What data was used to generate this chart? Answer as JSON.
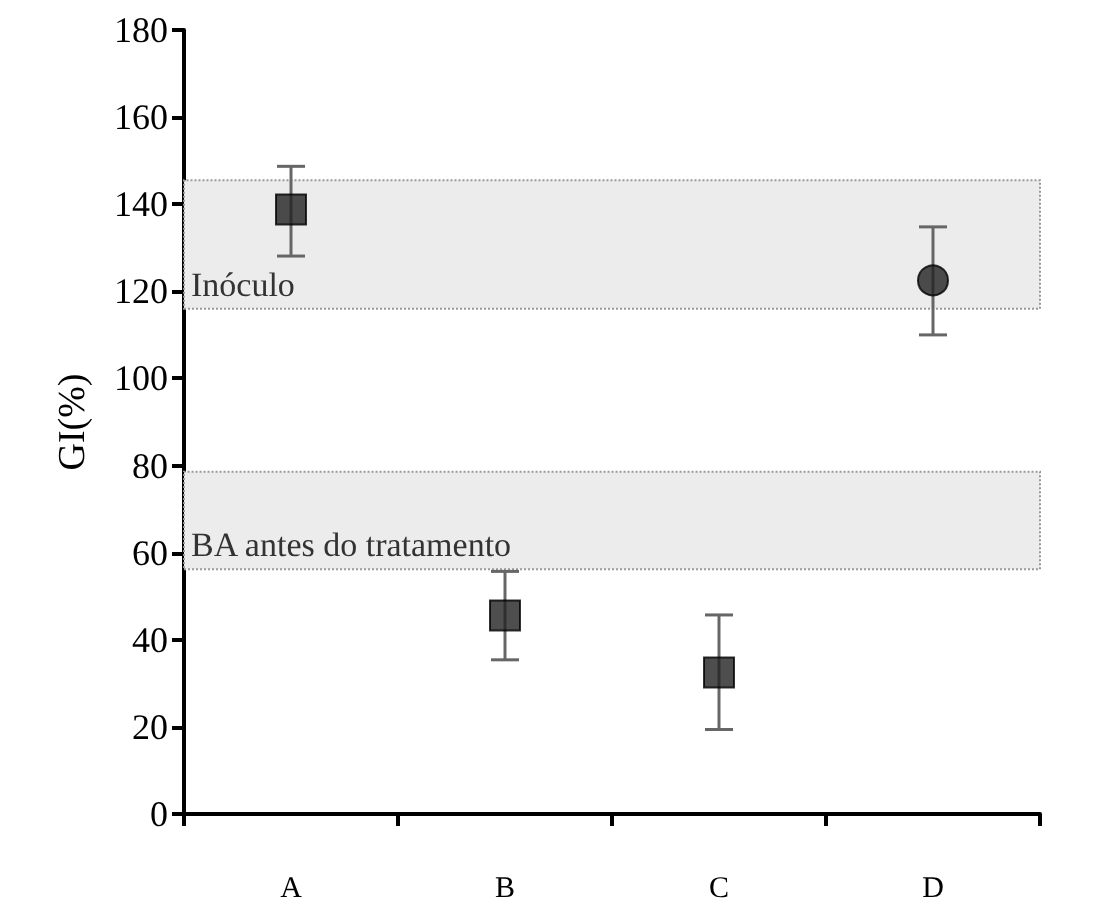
{
  "chart_data": {
    "type": "scatter",
    "ylabel": "GI(%)",
    "categories": [
      "A",
      "B",
      "C",
      "D"
    ],
    "series": [
      {
        "x": [
          "A"
        ],
        "values": [
          138.8
        ],
        "errors": [
          [
            128.1,
            148.7
          ]
        ],
        "color": "#222222",
        "marker": "square"
      },
      {
        "x": [
          "B"
        ],
        "values": [
          45.6
        ],
        "errors": [
          [
            35.4,
            55.7
          ]
        ],
        "color": "#222222",
        "marker": "square"
      },
      {
        "x": [
          "C"
        ],
        "values": [
          32.5
        ],
        "errors": [
          [
            19.4,
            45.7
          ]
        ],
        "color": "#222222",
        "marker": "square"
      },
      {
        "x": [
          "D"
        ],
        "values": [
          122.5
        ],
        "errors": [
          [
            110,
            134.8
          ]
        ],
        "color": "#222222",
        "marker": "circle"
      }
    ],
    "bands": [
      {
        "axis": "y",
        "from": 116,
        "to": 145.5,
        "label": "Inóculo",
        "color": "#ececec"
      },
      {
        "axis": "y",
        "from": 56.2,
        "to": 78.6,
        "label": "BA antes do tratamento",
        "color": "#ececec"
      }
    ],
    "ylim": [
      0,
      180
    ],
    "yticks": [
      0,
      20,
      40,
      60,
      80,
      100,
      120,
      140,
      160,
      180
    ],
    "grid": false
  }
}
